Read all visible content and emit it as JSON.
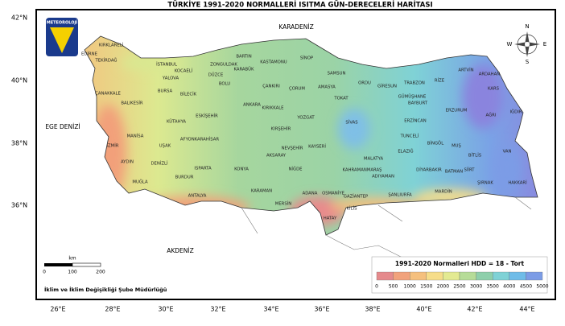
{
  "header": {
    "title": "TÜRKİYE 1991-2020 NORMALLERİ ISITMA GÜN-DERECELERİ HARİTASI"
  },
  "logo": {
    "label": "METEOROLOJİ"
  },
  "axes": {
    "latitude_labels": [
      "42°N",
      "40°N",
      "38°N",
      "36°N"
    ],
    "longitude_labels": [
      "26°E",
      "28°E",
      "30°E",
      "32°E",
      "34°E",
      "36°E",
      "38°E",
      "40°E",
      "42°E",
      "44°E"
    ]
  },
  "seas": [
    "KARADENİZ",
    "EGE DENİZİ",
    "AKDENİZ"
  ],
  "compass": [
    "N",
    "E",
    "S",
    "W"
  ],
  "scale_bar": {
    "unit": "km",
    "ticks": [
      0,
      100,
      200
    ]
  },
  "credit": "İklim ve İklim Değişikliği Şube Müdürlüğü",
  "legend": {
    "title": "1991-2020 Normalleri HDD = 18 - Tort",
    "ticks": [
      0,
      500,
      1000,
      1500,
      2000,
      2500,
      3000,
      3500,
      4000,
      4500,
      5000
    ],
    "colors": [
      "#e58a8c",
      "#f1a27c",
      "#f5c07e",
      "#f6dd8a",
      "#e3ea92",
      "#b6dc98",
      "#8ecfab",
      "#7fd2d6",
      "#6fbce8",
      "#7c9ce6",
      "#8f84de"
    ]
  },
  "provinces": [
    "EDİRNE",
    "KIRKLARELİ",
    "TEKİRDAĞ",
    "İSTANBUL",
    "KOCAELİ",
    "ZONGULDAK",
    "BARTIN",
    "KASTAMONU",
    "SİNOP",
    "SAMSUN",
    "ORDU",
    "GİRESUN",
    "TRABZON",
    "RİZE",
    "ARTVİN",
    "ARDAHAN",
    "KARS",
    "IĞDIR",
    "AĞRI",
    "ERZURUM",
    "BAYBURT",
    "GÜMÜŞHANE",
    "ERZİNCAN",
    "TUNCELİ",
    "BİNGÖL",
    "MUŞ",
    "BİTLİS",
    "VAN",
    "HAKKARİ",
    "ŞIRNAK",
    "SİİRT",
    "BATMAN",
    "DİYARBAKIR",
    "MARDİN",
    "ŞANLIURFA",
    "ADIYAMAN",
    "MALATYA",
    "ELAZIĞ",
    "KAHRAMANMARAŞ",
    "GAZİANTEP",
    "KİLİS",
    "HATAY",
    "OSMANİYE",
    "ADANA",
    "MERSİN",
    "KARAMAN",
    "NİĞDE",
    "KAYSERİ",
    "SİVAS",
    "TOKAT",
    "AMASYA",
    "ÇORUM",
    "YOZGAT",
    "KIRŞEHİR",
    "NEVŞEHİR",
    "AKSARAY",
    "KIRIKKALE",
    "ANKARA",
    "ÇANKIRI",
    "KARABÜK",
    "BOLU",
    "DÜZCE",
    "BİLECİK",
    "BURSA",
    "YALOVA",
    "ÇANAKKALE",
    "BALIKESİR",
    "ESKİŞEHİR",
    "KÜTAHYA",
    "AFYONKARAHİSAR",
    "UŞAK",
    "MANİSA",
    "İZMİR",
    "AYDIN",
    "DENİZLİ",
    "MUĞLA",
    "BURDUR",
    "ISPARTA",
    "ANTALYA",
    "KONYA"
  ]
}
